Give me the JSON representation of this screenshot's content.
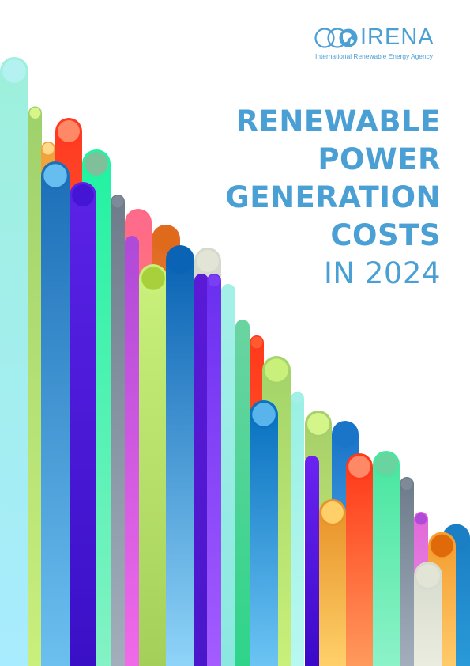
{
  "org": {
    "short_name": "IRENA",
    "full_name": "International Renewable Energy Agency",
    "brand_color": "#4a9fd4"
  },
  "title": {
    "lines": [
      "RENEWABLE",
      "POWER",
      "GENERATION",
      "COSTS"
    ],
    "year_line": "IN 2024"
  },
  "decoration": {
    "description": "diagonal descending row of coloured vertical pipes with round caps",
    "colors": [
      "#a3f0e8",
      "#b8e07a",
      "#ff4a2c",
      "#f5a033",
      "#2ff2a0",
      "#1a7fc4",
      "#8b3df5",
      "#7f8a99",
      "#ff6b8a",
      "#e06ad8",
      "#e0692c",
      "#c8f071",
      "#2a8fd4",
      "#5a1fd6",
      "#d8dccf"
    ]
  }
}
